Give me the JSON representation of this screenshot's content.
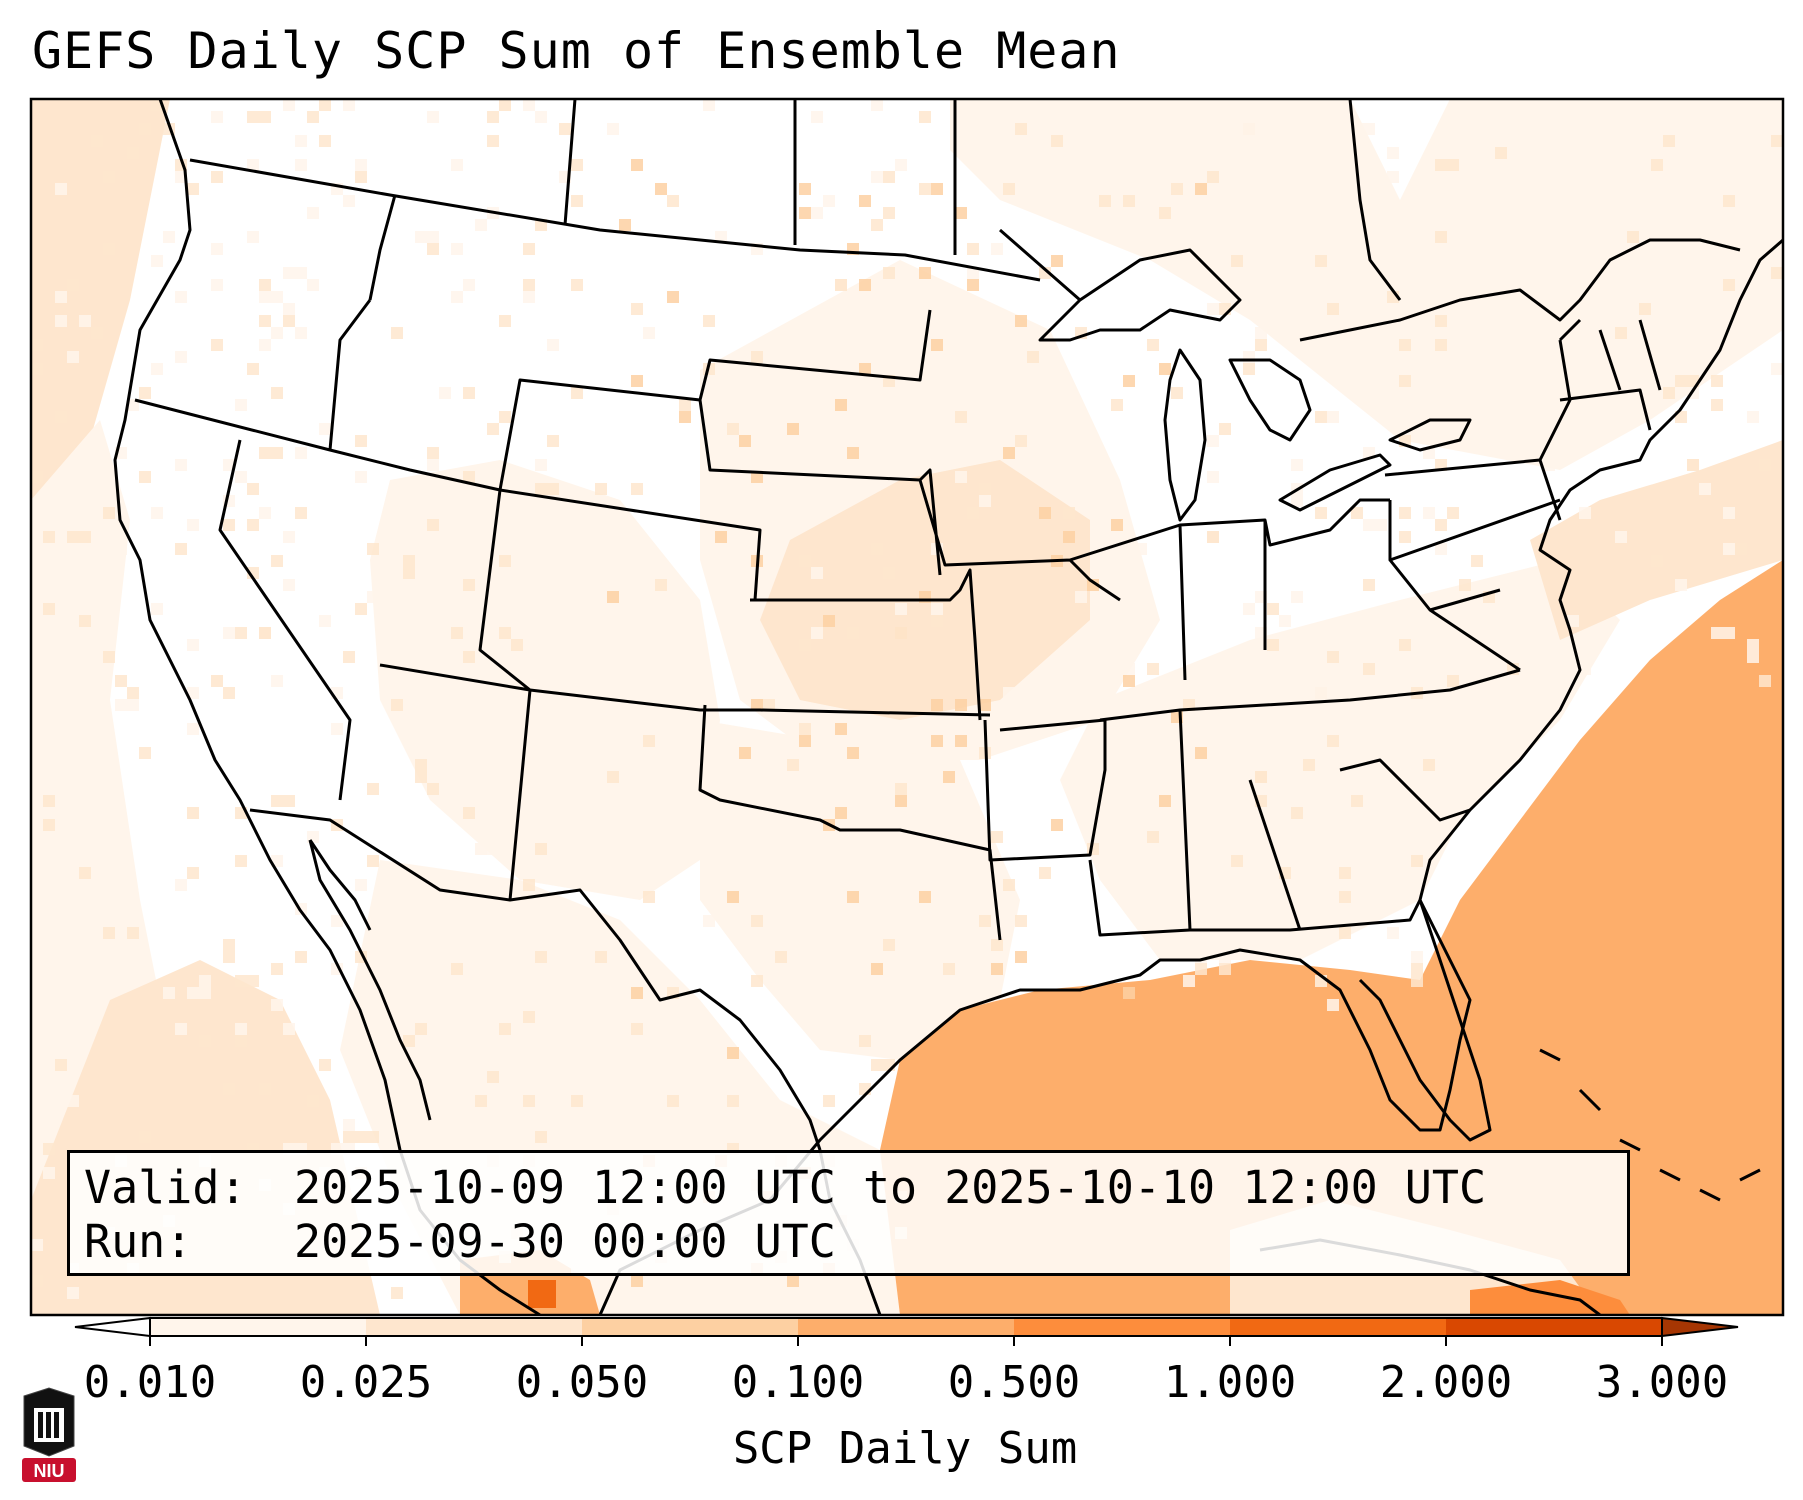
{
  "title": "GEFS Daily SCP Sum of Ensemble Mean",
  "info": {
    "valid_label": "Valid:",
    "valid_value": "2025-10-09 12:00 UTC to 2025-10-10 12:00 UTC",
    "run_label": "Run:",
    "run_value": "2025-09-30 00:00 UTC"
  },
  "colorbar": {
    "label": "SCP Daily Sum",
    "ticks": [
      "0.010",
      "0.025",
      "0.050",
      "0.100",
      "0.500",
      "1.000",
      "2.000",
      "3.000"
    ],
    "colors": [
      "#fff5eb",
      "#fee6ce",
      "#fdd0a2",
      "#fdae6b",
      "#fd8d3c",
      "#f16913",
      "#d94801",
      "#a63603"
    ],
    "under_color": "#ffffff",
    "over_color": "#7f2704",
    "extend": "both"
  },
  "logo": {
    "text": "NIU"
  },
  "colors": {
    "border": "#000000",
    "ocean_high": "#fdae6b"
  }
}
